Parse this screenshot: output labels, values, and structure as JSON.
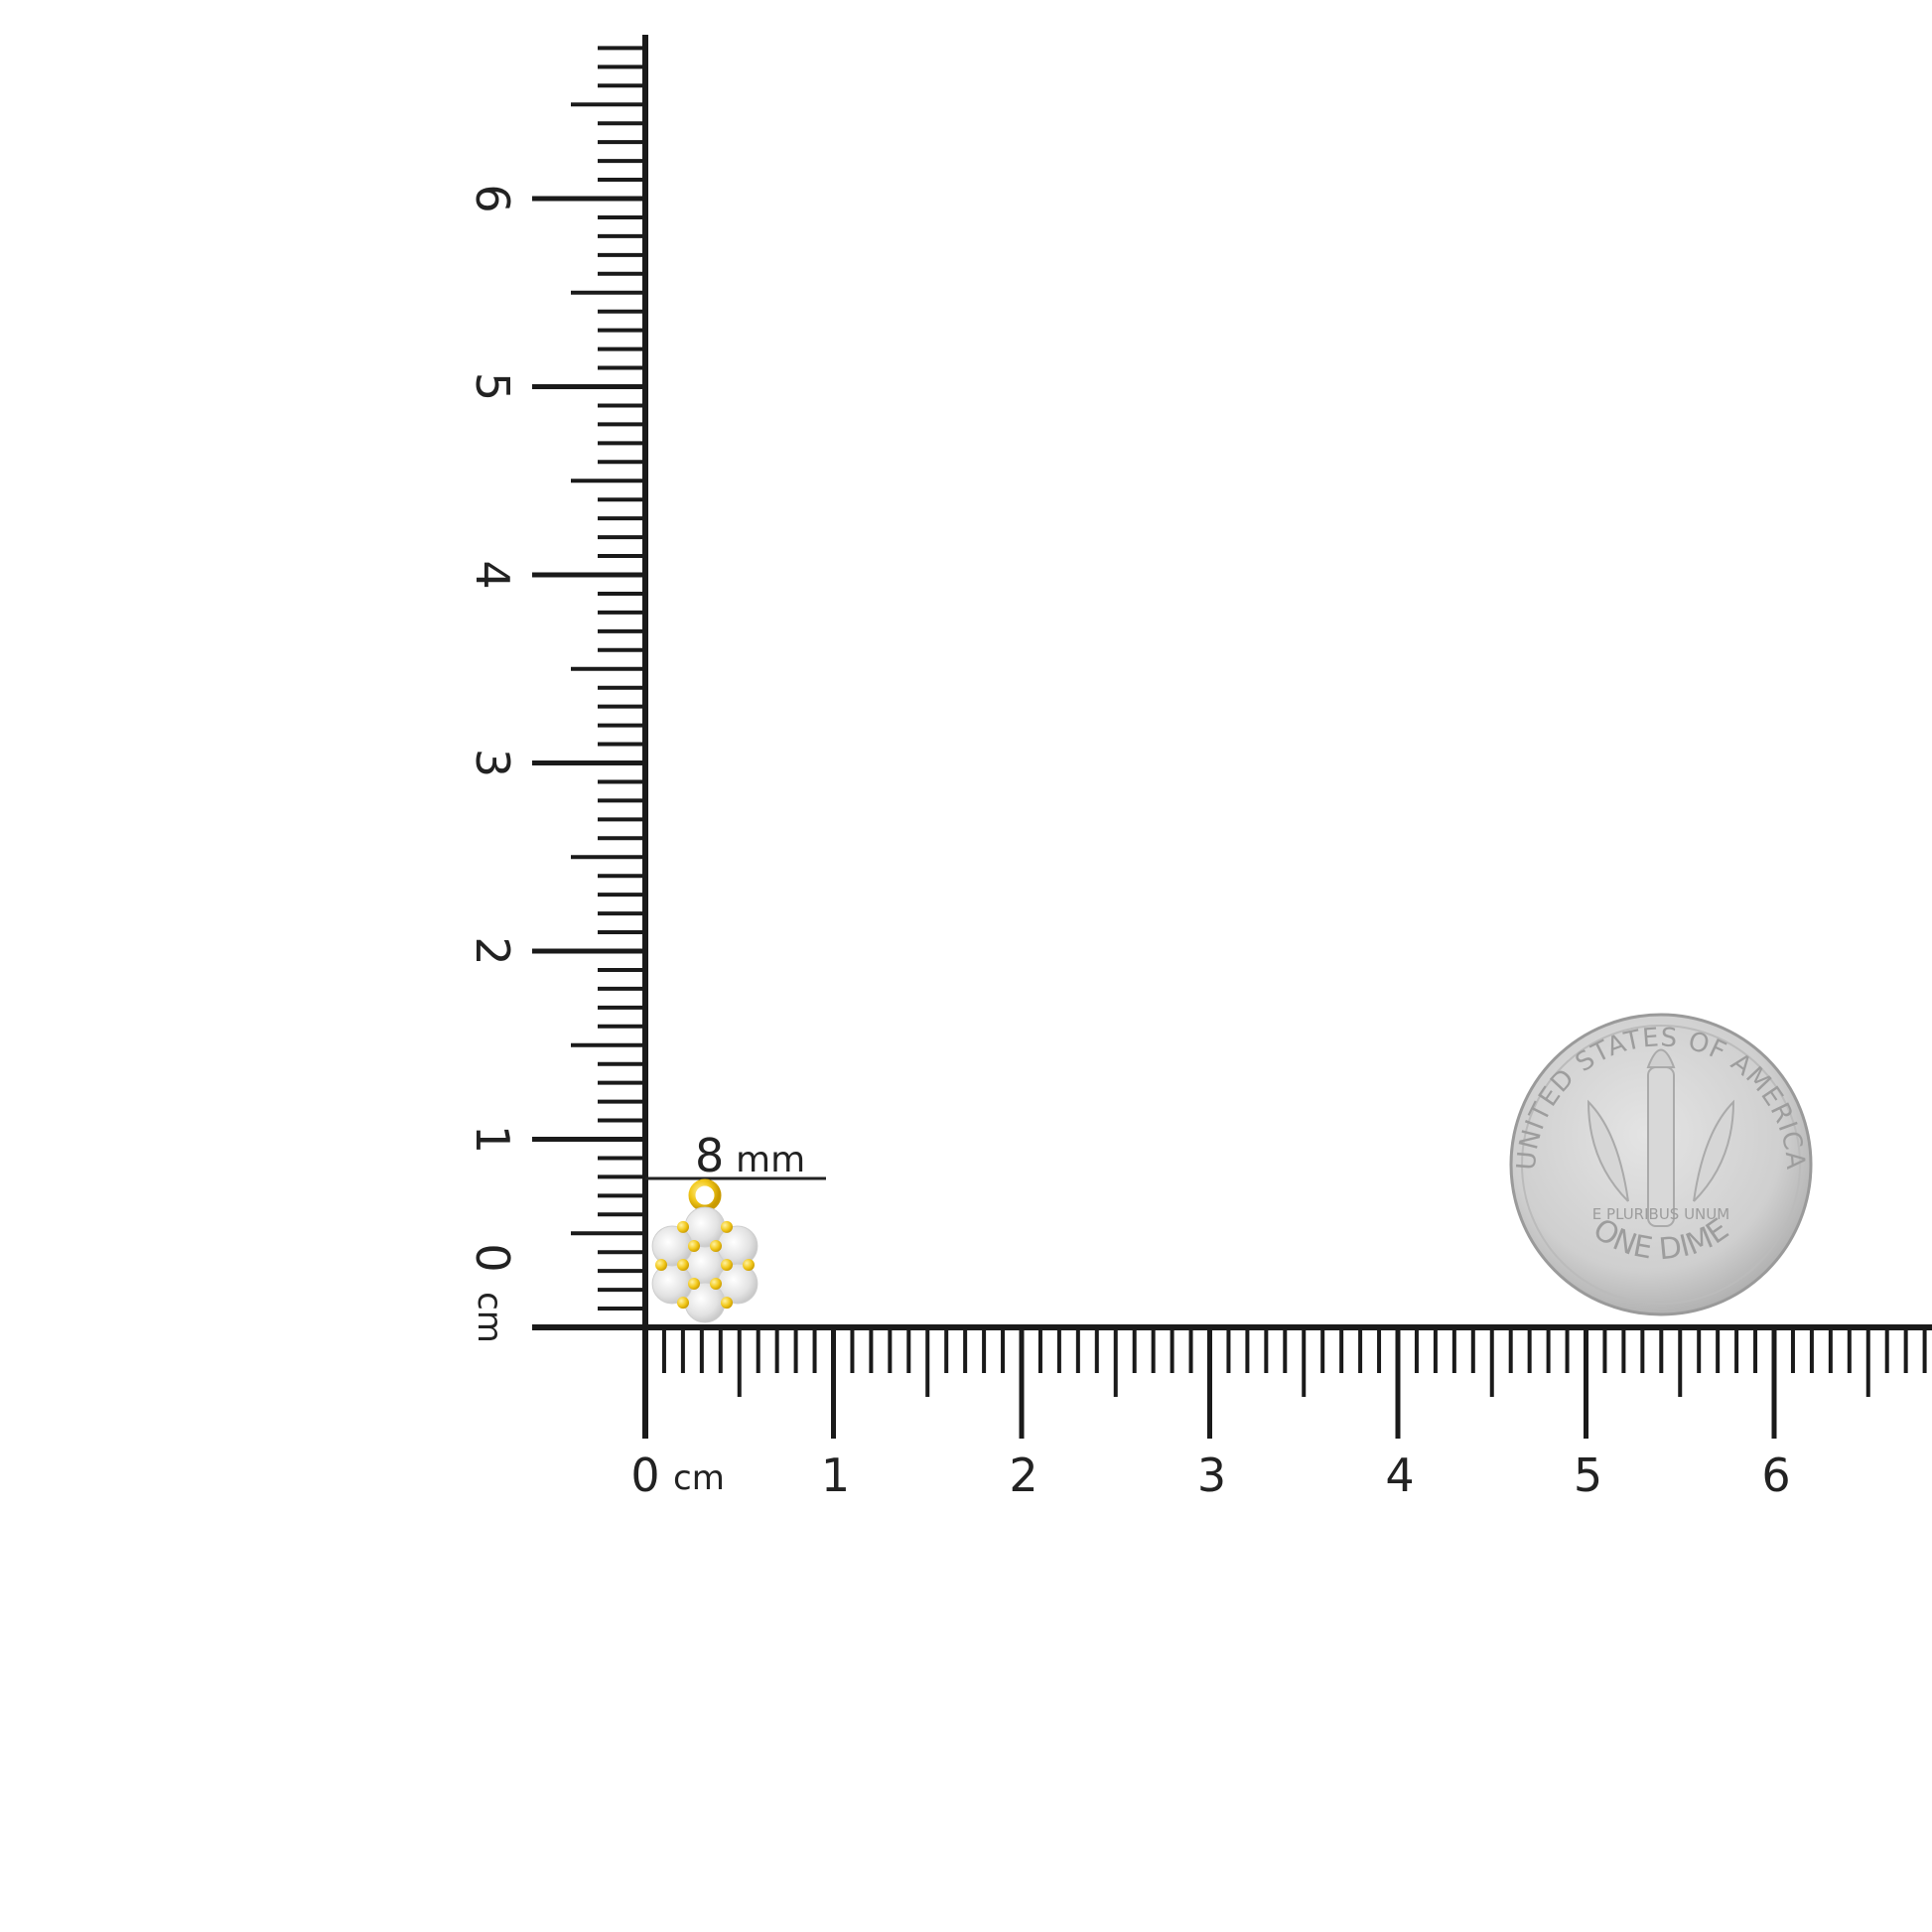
{
  "rulers": {
    "unit": "cm",
    "horizontal_labels": [
      "0",
      "1",
      "2",
      "3",
      "4",
      "5",
      "6"
    ],
    "vertical_labels": [
      "0",
      "1",
      "2",
      "3",
      "4",
      "5",
      "6"
    ],
    "ink_color": "#1a1a1a"
  },
  "measurement": {
    "value": "8",
    "unit": "mm"
  },
  "earring": {
    "metal_color": "#f2c81a",
    "stone_color": "#e6e6e6"
  },
  "coin": {
    "top_text": "UNITED STATES OF AMERICA",
    "bottom_text": "ONE DIME",
    "motto": "E PLURIBUS UNUM",
    "color": "#c9c9c9"
  }
}
